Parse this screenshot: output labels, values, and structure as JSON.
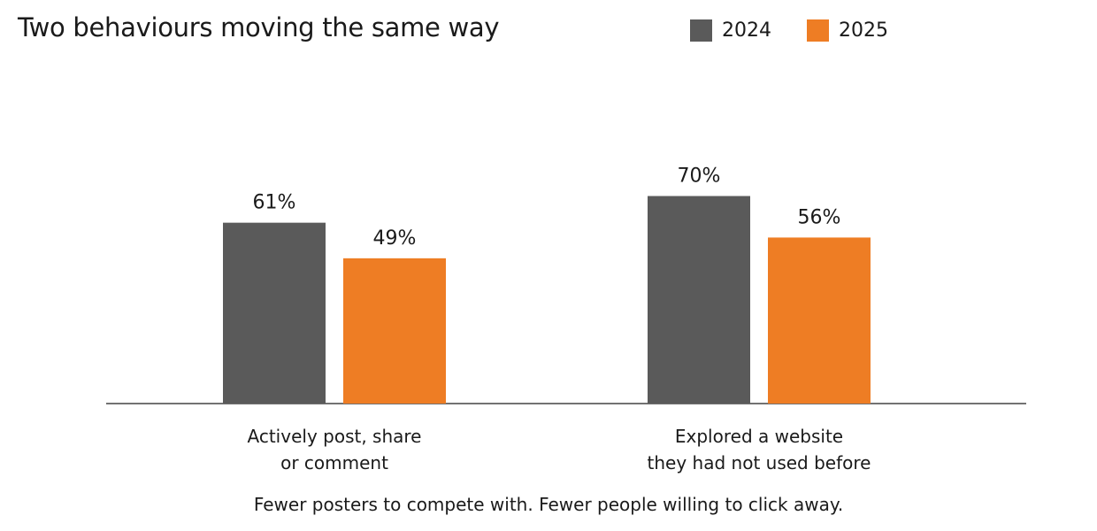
{
  "chart_data": {
    "type": "bar",
    "title": "Two behaviours moving the same way",
    "categories": [
      "Actively post, share\nor comment",
      "Explored a website\nthey had not used before"
    ],
    "series": [
      {
        "name": "2024",
        "color": "#5a5a5a",
        "values": [
          61,
          70
        ]
      },
      {
        "name": "2025",
        "color": "#ee7d24",
        "values": [
          49,
          56
        ]
      }
    ],
    "value_labels": [
      [
        "61%",
        "70%"
      ],
      [
        "49%",
        "56%"
      ]
    ],
    "ylim": [
      0,
      80
    ],
    "grid": false,
    "legend": "top-right",
    "xlabel": "",
    "ylabel": ""
  },
  "footnote": "Fewer posters to compete with. Fewer people willing to click away."
}
